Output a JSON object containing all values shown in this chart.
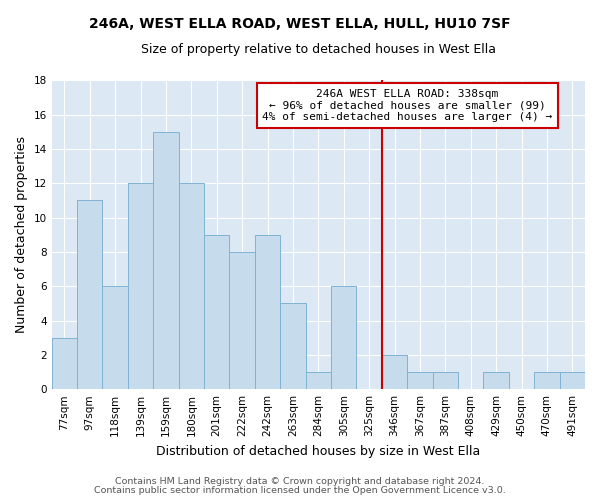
{
  "title": "246A, WEST ELLA ROAD, WEST ELLA, HULL, HU10 7SF",
  "subtitle": "Size of property relative to detached houses in West Ella",
  "xlabel": "Distribution of detached houses by size in West Ella",
  "ylabel": "Number of detached properties",
  "bin_labels": [
    "77sqm",
    "97sqm",
    "118sqm",
    "139sqm",
    "159sqm",
    "180sqm",
    "201sqm",
    "222sqm",
    "242sqm",
    "263sqm",
    "284sqm",
    "305sqm",
    "325sqm",
    "346sqm",
    "367sqm",
    "387sqm",
    "408sqm",
    "429sqm",
    "450sqm",
    "470sqm",
    "491sqm"
  ],
  "bar_heights": [
    3,
    11,
    6,
    12,
    15,
    12,
    9,
    8,
    9,
    5,
    1,
    6,
    0,
    2,
    1,
    1,
    0,
    1,
    0,
    1,
    1
  ],
  "bar_color": "#c6dcec",
  "bar_edge_color": "#7fb3d3",
  "vline_x": 12.5,
  "vline_color": "#cc0000",
  "ylim": [
    0,
    18
  ],
  "yticks": [
    0,
    2,
    4,
    6,
    8,
    10,
    12,
    14,
    16,
    18
  ],
  "annotation_title": "246A WEST ELLA ROAD: 338sqm",
  "annotation_line1": "← 96% of detached houses are smaller (99)",
  "annotation_line2": "4% of semi-detached houses are larger (4) →",
  "annotation_box_color": "#ffffff",
  "annotation_border_color": "#cc0000",
  "footer1": "Contains HM Land Registry data © Crown copyright and database right 2024.",
  "footer2": "Contains public sector information licensed under the Open Government Licence v3.0.",
  "fig_background_color": "#ffffff",
  "plot_background_color": "#dce9f5",
  "grid_color": "#ffffff",
  "title_fontsize": 10,
  "subtitle_fontsize": 9,
  "ylabel_fontsize": 9,
  "xlabel_fontsize": 9,
  "tick_fontsize": 7.5,
  "annotation_fontsize": 8,
  "footer_fontsize": 6.8,
  "footer_color": "#555555"
}
